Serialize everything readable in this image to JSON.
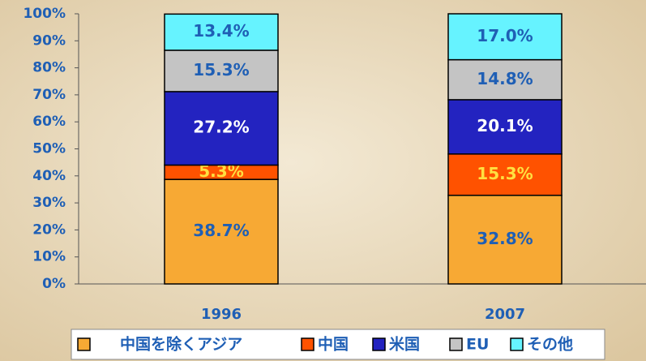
{
  "chart_data": {
    "type": "stacked_bar",
    "categories": [
      "1996",
      "2007"
    ],
    "series": [
      {
        "name": "中国を除くアジア",
        "color": "#f7a934",
        "values": [
          38.7,
          32.8
        ],
        "value_labels": [
          "38.7%",
          "32.8%"
        ],
        "label_color": "#1f5fb5"
      },
      {
        "name": "中国",
        "color": "#ff5200",
        "values": [
          5.3,
          15.3
        ],
        "value_labels": [
          "5.3%",
          "15.3%"
        ],
        "label_color": "#ffe040"
      },
      {
        "name": "米国",
        "color": "#2323c0",
        "values": [
          27.2,
          20.1
        ],
        "value_labels": [
          "27.2%",
          "20.1%"
        ],
        "label_color": "#ffffff"
      },
      {
        "name": "EU",
        "color": "#c4c4c4",
        "values": [
          15.3,
          14.8
        ],
        "value_labels": [
          "15.3%",
          "14.8%"
        ],
        "label_color": "#1f5fb5"
      },
      {
        "name": "その他",
        "color": "#66f3ff",
        "values": [
          13.4,
          17.0
        ],
        "value_labels": [
          "13.4%",
          "17.0%"
        ],
        "label_color": "#1f5fb5"
      }
    ],
    "ylim": [
      0,
      100
    ],
    "yticks": [
      {
        "value": 0,
        "label": "0%"
      },
      {
        "value": 10,
        "label": "10%"
      },
      {
        "value": 20,
        "label": "20%"
      },
      {
        "value": 30,
        "label": "30%"
      },
      {
        "value": 40,
        "label": "40%"
      },
      {
        "value": 50,
        "label": "50%"
      },
      {
        "value": 60,
        "label": "60%"
      },
      {
        "value": 70,
        "label": "70%"
      },
      {
        "value": 80,
        "label": "80%"
      },
      {
        "value": 90,
        "label": "90%"
      },
      {
        "value": 100,
        "label": "100%"
      }
    ]
  }
}
